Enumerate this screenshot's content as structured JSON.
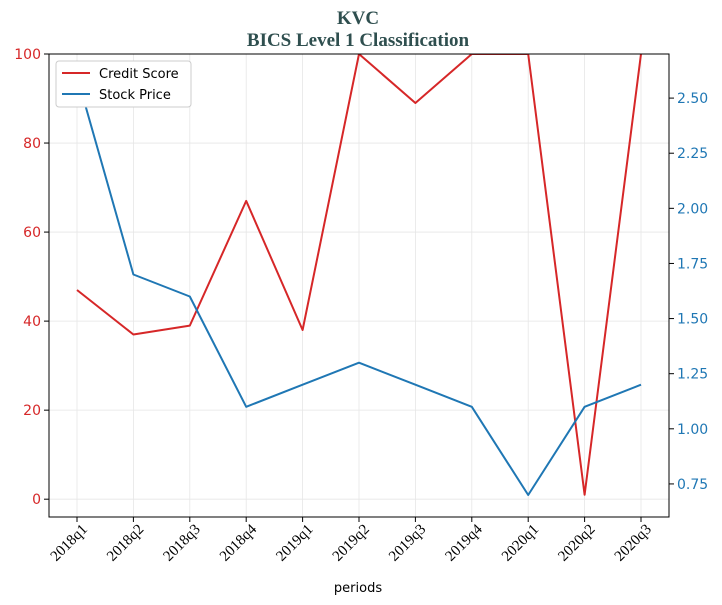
{
  "chart_data": {
    "type": "line",
    "title": "KVC",
    "subtitle": "BICS Level 1 Classification",
    "xlabel": "periods",
    "categories": [
      "2018q1",
      "2018q2",
      "2018q3",
      "2018q4",
      "2019q1",
      "2019q2",
      "2019q3",
      "2019q4",
      "2020q1",
      "2020q2",
      "2020q3"
    ],
    "y_left": {
      "range": [
        -4,
        100
      ],
      "ticks": [
        0,
        20,
        40,
        60,
        80,
        100
      ],
      "color": "#d62728"
    },
    "y_right": {
      "range": [
        0.6,
        2.7
      ],
      "ticks": [
        0.75,
        1.0,
        1.25,
        1.5,
        1.75,
        2.0,
        2.25,
        2.5
      ],
      "tick_labels": [
        "0.75",
        "1.00",
        "1.25",
        "1.50",
        "1.75",
        "2.00",
        "2.25",
        "2.50"
      ],
      "color": "#1f77b4"
    },
    "series": [
      {
        "name": "Credit Score",
        "axis": "left",
        "color": "#d62728",
        "values": [
          47,
          37,
          39,
          67,
          38,
          100,
          89,
          100,
          100,
          1,
          100
        ]
      },
      {
        "name": "Stock Price",
        "axis": "right",
        "color": "#1f77b4",
        "values": [
          2.6,
          1.7,
          1.6,
          1.1,
          1.2,
          1.3,
          1.2,
          1.1,
          0.7,
          1.1,
          1.2
        ]
      }
    ],
    "grid": true,
    "legend": "top-left"
  }
}
